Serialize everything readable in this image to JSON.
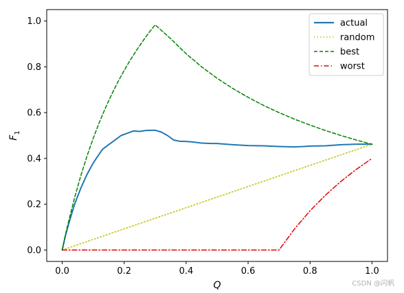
{
  "chart_data": {
    "type": "line",
    "xlabel": "Q",
    "ylabel": "F",
    "ylabel_sub": "1",
    "xlim": [
      -0.05,
      1.05
    ],
    "ylim": [
      -0.05,
      1.05
    ],
    "xticks": [
      0.0,
      0.2,
      0.4,
      0.6,
      0.8,
      1.0
    ],
    "xtick_labels": [
      "0.0",
      "0.2",
      "0.4",
      "0.6",
      "0.8",
      "1.0"
    ],
    "yticks": [
      0.0,
      0.2,
      0.4,
      0.6,
      0.8,
      1.0
    ],
    "ytick_labels": [
      "0.0",
      "0.2",
      "0.4",
      "0.6",
      "0.8",
      "1.0"
    ],
    "grid": false,
    "legend": "top-right",
    "series": [
      {
        "name": "actual",
        "color": "#1f77b4",
        "style": "solid",
        "x": [
          0.0,
          0.01,
          0.02,
          0.04,
          0.06,
          0.08,
          0.1,
          0.12,
          0.13,
          0.15,
          0.17,
          0.19,
          0.21,
          0.23,
          0.25,
          0.27,
          0.29,
          0.3,
          0.32,
          0.34,
          0.36,
          0.38,
          0.4,
          0.42,
          0.45,
          0.48,
          0.5,
          0.55,
          0.6,
          0.65,
          0.7,
          0.75,
          0.78,
          0.8,
          0.85,
          0.9,
          0.95,
          1.0
        ],
        "y": [
          0.0,
          0.06,
          0.11,
          0.2,
          0.27,
          0.33,
          0.38,
          0.42,
          0.44,
          0.46,
          0.48,
          0.5,
          0.51,
          0.52,
          0.518,
          0.522,
          0.523,
          0.523,
          0.515,
          0.5,
          0.48,
          0.475,
          0.474,
          0.472,
          0.467,
          0.465,
          0.465,
          0.46,
          0.456,
          0.455,
          0.452,
          0.45,
          0.452,
          0.454,
          0.455,
          0.46,
          0.462,
          0.462
        ]
      },
      {
        "name": "random",
        "color": "#bfbf00",
        "style": "dotted",
        "x": [
          0.0,
          1.0
        ],
        "y": [
          0.0,
          0.462
        ]
      },
      {
        "name": "best",
        "color": "#008000",
        "style": "dashed",
        "x": [
          0.0,
          0.01,
          0.02,
          0.04,
          0.06,
          0.08,
          0.1,
          0.12,
          0.14,
          0.16,
          0.18,
          0.2,
          0.22,
          0.24,
          0.26,
          0.28,
          0.3,
          0.35,
          0.4,
          0.45,
          0.5,
          0.55,
          0.6,
          0.65,
          0.7,
          0.75,
          0.8,
          0.85,
          0.9,
          0.95,
          1.0
        ],
        "y": [
          0.0,
          0.0645,
          0.1212,
          0.2286,
          0.3243,
          0.4103,
          0.4878,
          0.5581,
          0.6222,
          0.6809,
          0.7347,
          0.7843,
          0.8302,
          0.8727,
          0.9123,
          0.9492,
          0.9836,
          0.9231,
          0.8571,
          0.8,
          0.75,
          0.7059,
          0.6667,
          0.6316,
          0.6,
          0.5714,
          0.5455,
          0.5217,
          0.5,
          0.48,
          0.4615
        ]
      },
      {
        "name": "worst",
        "color": "#e00000",
        "style": "dashdot",
        "x": [
          0.0,
          0.7,
          0.75,
          0.8,
          0.85,
          0.9,
          0.95,
          1.0
        ],
        "y": [
          0.0,
          0.0,
          0.0923,
          0.1714,
          0.24,
          0.3,
          0.3529,
          0.4
        ]
      }
    ]
  },
  "watermark": "CSDN @闪帆"
}
